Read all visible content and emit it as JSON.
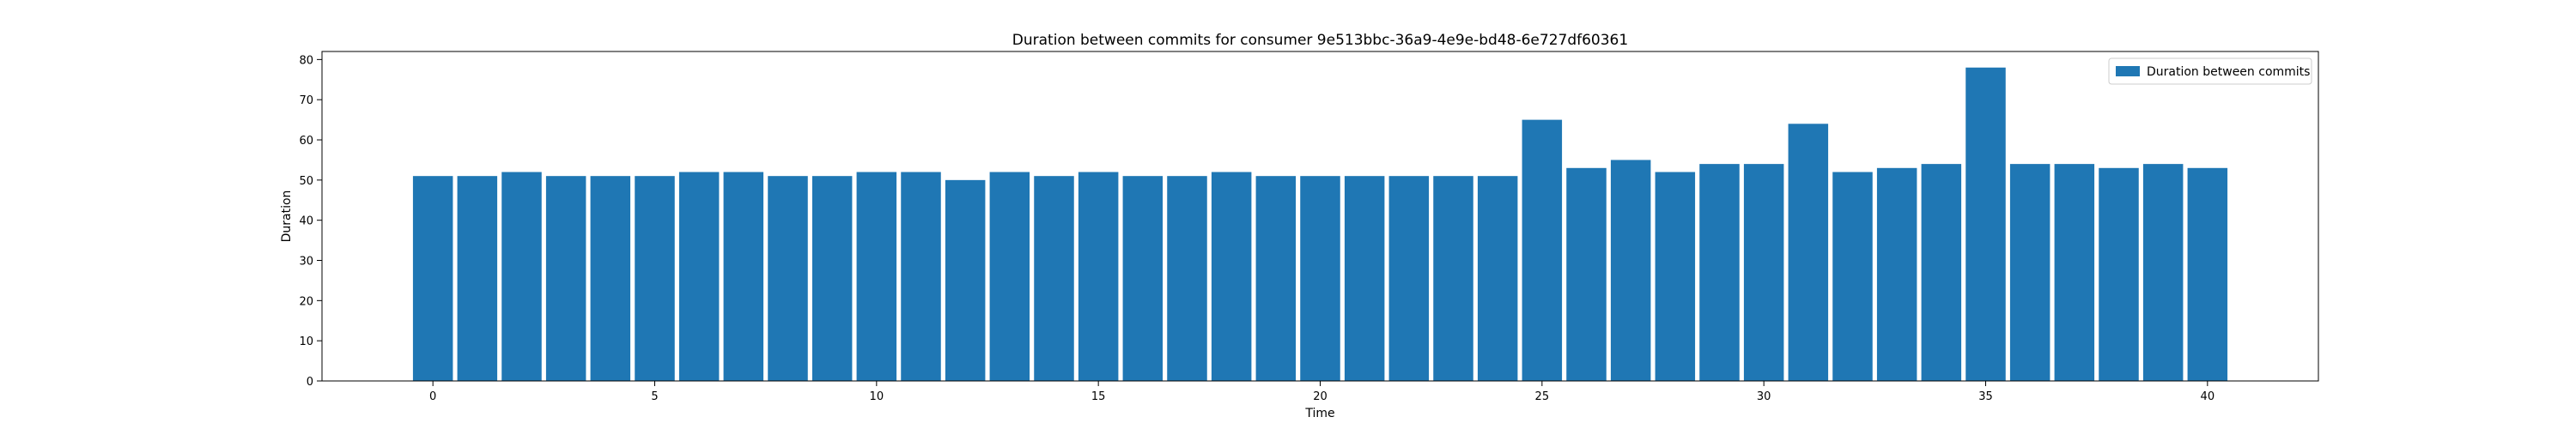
{
  "chart_data": {
    "type": "bar",
    "title": "Duration between commits for consumer 9e513bbc-36a9-4e9e-bd48-6e727df60361",
    "xlabel": "Time",
    "ylabel": "Duration",
    "xlim": [
      -2.5,
      42.5
    ],
    "ylim": [
      0,
      82
    ],
    "xticks": [
      0,
      5,
      10,
      15,
      20,
      25,
      30,
      35,
      40
    ],
    "yticks": [
      0,
      10,
      20,
      30,
      40,
      50,
      60,
      70,
      80
    ],
    "grid": false,
    "legend": {
      "position": "upper-right",
      "entries": [
        "Duration between commits"
      ]
    },
    "color": "#1f77b4",
    "series": [
      {
        "name": "Duration between commits",
        "x": [
          0,
          1,
          2,
          3,
          4,
          5,
          6,
          7,
          8,
          9,
          10,
          11,
          12,
          13,
          14,
          15,
          16,
          17,
          18,
          19,
          20,
          21,
          22,
          23,
          24,
          25,
          26,
          27,
          28,
          29,
          30,
          31,
          32,
          33,
          34,
          35,
          36,
          37,
          38,
          39,
          40
        ],
        "values": [
          51,
          51,
          52,
          51,
          51,
          51,
          52,
          52,
          51,
          51,
          52,
          52,
          50,
          52,
          51,
          52,
          51,
          51,
          52,
          51,
          51,
          51,
          51,
          51,
          51,
          65,
          53,
          55,
          52,
          54,
          54,
          64,
          52,
          53,
          54,
          78,
          54,
          54,
          53,
          54,
          53
        ]
      }
    ]
  }
}
